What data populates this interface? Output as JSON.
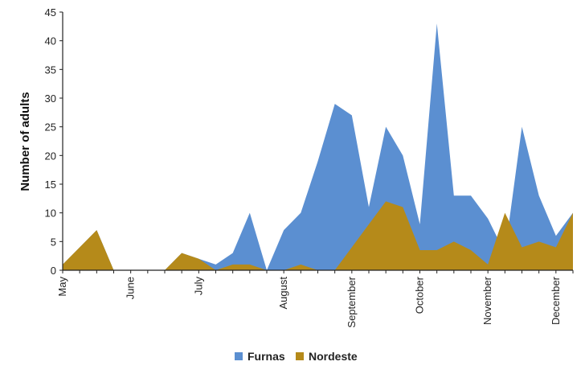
{
  "chart_data": {
    "type": "area",
    "title": "",
    "xlabel": "",
    "ylabel": "Number of adults",
    "ylim": [
      0,
      45
    ],
    "yticks": [
      0,
      5,
      10,
      15,
      20,
      25,
      30,
      35,
      40,
      45
    ],
    "x_count": 31,
    "month_labels": [
      {
        "label": "May",
        "index": 0
      },
      {
        "label": "June",
        "index": 4
      },
      {
        "label": "July",
        "index": 8
      },
      {
        "label": "August",
        "index": 13
      },
      {
        "label": "September",
        "index": 17
      },
      {
        "label": "October",
        "index": 21
      },
      {
        "label": "November",
        "index": 25
      },
      {
        "label": "December",
        "index": 29
      }
    ],
    "series": [
      {
        "name": "Furnas",
        "color": "#5b8fd1",
        "values": [
          1,
          4,
          7,
          0,
          0,
          0,
          0,
          3,
          2,
          1,
          3,
          10,
          0,
          7,
          10,
          19,
          29,
          27,
          11,
          25,
          20,
          8,
          43,
          13,
          13,
          9,
          3,
          25,
          13,
          6,
          10
        ]
      },
      {
        "name": "Nordeste",
        "color": "#b58a1a",
        "values": [
          1,
          4,
          7,
          0,
          0,
          0,
          0,
          3,
          2,
          0,
          1,
          1,
          0,
          0,
          1,
          0,
          0,
          4,
          8,
          12,
          11,
          3.5,
          3.5,
          5,
          3.5,
          1,
          10,
          4,
          5,
          4,
          10
        ]
      }
    ],
    "legend_position": "bottom"
  }
}
